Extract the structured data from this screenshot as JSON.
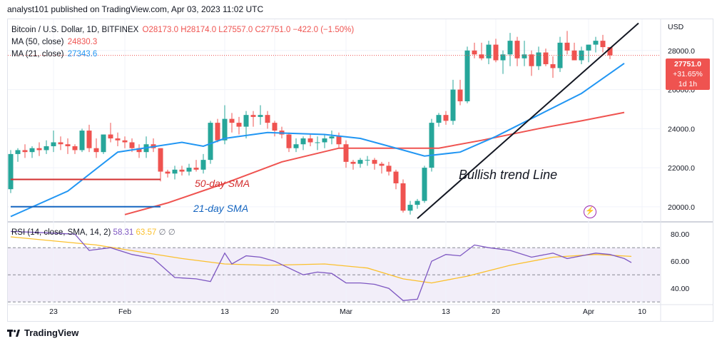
{
  "header": {
    "publisher": "analyst101 published on TradingView.com, Apr 03, 2023 11:02 UTC"
  },
  "legend": {
    "symbol": "Bitcoin / U.S. Dollar, 1D, BITFINEX",
    "ohlc": "O28173.0 H28174.0 L27557.0 C27751.0 −422.0 (−1.50%)",
    "ma50_label": "MA (50, close)",
    "ma50_value": "24830.3",
    "ma50_color": "#ef5350",
    "ma21_label": "MA (21, close)",
    "ma21_value": "27343.6",
    "ma21_color": "#2196f3"
  },
  "price_tag": {
    "price": "27751.0",
    "change": "+31.65%",
    "timer": "1d 1h"
  },
  "currency": "USD",
  "rsi_legend": {
    "label": "RSI (14, close, SMA, 14, 2)",
    "rsi_value": "58.31",
    "sma_value": "63.57",
    "extra": "∅ ∅"
  },
  "annotations": {
    "trend": "Bullish trend Line",
    "sma50": "50-day SMA",
    "sma21": "21-day SMA"
  },
  "footer": {
    "brand": "TradingView"
  },
  "icons": {
    "flash": "flash-icon",
    "logo": "tradingview-logo-icon"
  },
  "chart_data": [
    {
      "type": "candlestick",
      "x_ticks": [
        "23",
        "Feb",
        "13",
        "20",
        "Mar",
        "13",
        "20",
        "Apr",
        "10"
      ],
      "y_ticks": [
        "28000.0",
        "26000.0",
        "24000.0",
        "22000.0",
        "20000.0"
      ],
      "ylim": [
        19300,
        29600
      ],
      "colors": {
        "up": "#26a69a",
        "down": "#ef5350"
      },
      "candles": [
        [
          20900,
          22900,
          20700,
          22700
        ],
        [
          22700,
          23000,
          22300,
          22900
        ],
        [
          22900,
          23200,
          22500,
          22800
        ],
        [
          22800,
          23100,
          22500,
          23000
        ],
        [
          23000,
          23300,
          22600,
          22900
        ],
        [
          22900,
          23400,
          22700,
          23100
        ],
        [
          23100,
          23900,
          22800,
          23300
        ],
        [
          23300,
          23600,
          22900,
          23200
        ],
        [
          23200,
          23500,
          22700,
          23100
        ],
        [
          23100,
          23200,
          22700,
          22900
        ],
        [
          22900,
          24000,
          22800,
          23900
        ],
        [
          23900,
          24200,
          22800,
          23000
        ],
        [
          23000,
          23500,
          22500,
          22800
        ],
        [
          22800,
          23700,
          22700,
          23700
        ],
        [
          23700,
          24300,
          23300,
          23500
        ],
        [
          23500,
          23800,
          23100,
          23400
        ],
        [
          23400,
          23600,
          23000,
          23300
        ],
        [
          23300,
          23500,
          22800,
          23000
        ],
        [
          23000,
          23200,
          22500,
          22800
        ],
        [
          22800,
          23600,
          22500,
          23200
        ],
        [
          23200,
          23500,
          22800,
          23000
        ],
        [
          23000,
          23000,
          21300,
          21800
        ],
        [
          21800,
          21900,
          21500,
          21700
        ],
        [
          21700,
          22100,
          21400,
          21900
        ],
        [
          21900,
          22100,
          21600,
          21800
        ],
        [
          21800,
          22200,
          21600,
          22000
        ],
        [
          22000,
          22400,
          21800,
          21900
        ],
        [
          21900,
          22700,
          21700,
          22400
        ],
        [
          22400,
          24400,
          22200,
          24300
        ],
        [
          24300,
          24500,
          23300,
          23400
        ],
        [
          23400,
          25200,
          23200,
          24500
        ],
        [
          24500,
          24800,
          23800,
          24300
        ],
        [
          24300,
          24600,
          23700,
          24100
        ],
        [
          24100,
          24900,
          23500,
          24700
        ],
        [
          24700,
          24900,
          24100,
          24600
        ],
        [
          24600,
          25200,
          24200,
          24700
        ],
        [
          24700,
          24900,
          24000,
          24300
        ],
        [
          24300,
          24400,
          23600,
          23900
        ],
        [
          23900,
          24100,
          23500,
          23700
        ],
        [
          23700,
          23800,
          22800,
          23000
        ],
        [
          23000,
          23500,
          22800,
          23200
        ],
        [
          23200,
          23600,
          22900,
          23500
        ],
        [
          23500,
          23700,
          23100,
          23300
        ],
        [
          23300,
          23600,
          22900,
          23300
        ],
        [
          23300,
          23700,
          23000,
          23500
        ],
        [
          23500,
          23900,
          23200,
          23600
        ],
        [
          23600,
          23800,
          23000,
          23200
        ],
        [
          23200,
          23400,
          22000,
          22300
        ],
        [
          22300,
          22400,
          21900,
          22200
        ],
        [
          22200,
          22500,
          22000,
          22400
        ],
        [
          22400,
          22600,
          22100,
          22400
        ],
        [
          22400,
          22500,
          21900,
          22200
        ],
        [
          22200,
          22300,
          21700,
          22100
        ],
        [
          22100,
          22300,
          21600,
          21800
        ],
        [
          21800,
          21900,
          20900,
          21200
        ],
        [
          21200,
          21400,
          19700,
          19800
        ],
        [
          19800,
          20300,
          19600,
          20100
        ],
        [
          20100,
          20400,
          19900,
          20300
        ],
        [
          20300,
          22100,
          20200,
          22000
        ],
        [
          22000,
          24500,
          21800,
          24300
        ],
        [
          24300,
          24800,
          24100,
          24700
        ],
        [
          24700,
          24900,
          24200,
          24400
        ],
        [
          24400,
          26500,
          24200,
          26000
        ],
        [
          26000,
          26500,
          25200,
          25400
        ],
        [
          25400,
          28200,
          25300,
          28000
        ],
        [
          28000,
          28400,
          27600,
          27800
        ],
        [
          27800,
          28400,
          27500,
          27600
        ],
        [
          27600,
          28500,
          27300,
          28300
        ],
        [
          28300,
          28600,
          27400,
          27500
        ],
        [
          27500,
          28000,
          26800,
          27800
        ],
        [
          27800,
          28900,
          27200,
          28500
        ],
        [
          28500,
          28700,
          27200,
          27600
        ],
        [
          27600,
          28500,
          27200,
          27800
        ],
        [
          27800,
          28000,
          26700,
          27200
        ],
        [
          27200,
          28200,
          27000,
          27900
        ],
        [
          27900,
          28100,
          27200,
          27300
        ],
        [
          27300,
          27700,
          26600,
          27100
        ],
        [
          27100,
          28700,
          26900,
          28400
        ],
        [
          28400,
          29000,
          27800,
          28000
        ],
        [
          28000,
          28400,
          27600,
          27500
        ],
        [
          27500,
          28200,
          27300,
          28000
        ],
        [
          28000,
          28300,
          27400,
          28300
        ],
        [
          28300,
          28700,
          27900,
          28500
        ],
        [
          28500,
          28800,
          27900,
          28173
        ],
        [
          28173,
          28174,
          27557,
          27751
        ]
      ],
      "ma21": [
        [
          0,
          19500
        ],
        [
          8,
          20800
        ],
        [
          15,
          22800
        ],
        [
          24,
          23300
        ],
        [
          27,
          23100
        ],
        [
          30,
          23500
        ],
        [
          36,
          23800
        ],
        [
          44,
          23700
        ],
        [
          49,
          23500
        ],
        [
          55,
          22900
        ],
        [
          58,
          22600
        ],
        [
          63,
          22800
        ],
        [
          68,
          23600
        ],
        [
          74,
          24700
        ],
        [
          80,
          25800
        ],
        [
          86,
          27343
        ]
      ],
      "ma50": [
        [
          16,
          19600
        ],
        [
          22,
          20200
        ],
        [
          30,
          21200
        ],
        [
          38,
          22300
        ],
        [
          46,
          23000
        ],
        [
          55,
          23000
        ],
        [
          60,
          23000
        ],
        [
          66,
          23400
        ],
        [
          74,
          24000
        ],
        [
          80,
          24400
        ],
        [
          86,
          24830
        ]
      ],
      "trend_line": [
        [
          57,
          19400
        ],
        [
          88,
          29400
        ]
      ],
      "hline_red": [
        [
          0,
          21400
        ],
        [
          21,
          21400
        ]
      ],
      "hline_blue": [
        [
          0,
          20000
        ],
        [
          21,
          20000
        ]
      ],
      "current_price": 27751.0
    },
    {
      "type": "line",
      "name": "RSI",
      "y_ticks": [
        "80.00",
        "60.00",
        "40.00"
      ],
      "ylim": [
        28,
        88
      ],
      "bands": [
        30,
        50,
        70
      ],
      "rsi": [
        [
          0,
          82
        ],
        [
          5,
          81
        ],
        [
          9,
          80
        ],
        [
          11,
          68
        ],
        [
          14,
          70
        ],
        [
          17,
          65
        ],
        [
          20,
          62
        ],
        [
          23,
          48
        ],
        [
          26,
          47
        ],
        [
          28,
          45
        ],
        [
          30,
          66
        ],
        [
          31,
          58
        ],
        [
          33,
          64
        ],
        [
          35,
          63
        ],
        [
          37,
          60
        ],
        [
          39,
          55
        ],
        [
          41,
          50
        ],
        [
          43,
          52
        ],
        [
          45,
          51
        ],
        [
          47,
          44
        ],
        [
          49,
          44
        ],
        [
          51,
          43
        ],
        [
          53,
          40
        ],
        [
          55,
          31
        ],
        [
          57,
          32
        ],
        [
          59,
          60
        ],
        [
          61,
          65
        ],
        [
          63,
          64
        ],
        [
          65,
          72
        ],
        [
          67,
          70
        ],
        [
          70,
          68
        ],
        [
          73,
          63
        ],
        [
          76,
          66
        ],
        [
          78,
          62
        ],
        [
          80,
          64
        ],
        [
          82,
          66
        ],
        [
          84,
          65
        ],
        [
          86,
          62
        ],
        [
          87,
          59
        ]
      ],
      "rsi_sma": [
        [
          0,
          78
        ],
        [
          12,
          72
        ],
        [
          18,
          67
        ],
        [
          24,
          62
        ],
        [
          30,
          58
        ],
        [
          36,
          57
        ],
        [
          44,
          58
        ],
        [
          50,
          55
        ],
        [
          55,
          47
        ],
        [
          59,
          44
        ],
        [
          64,
          49
        ],
        [
          70,
          57
        ],
        [
          76,
          63
        ],
        [
          82,
          65
        ],
        [
          87,
          63.6
        ]
      ]
    }
  ]
}
